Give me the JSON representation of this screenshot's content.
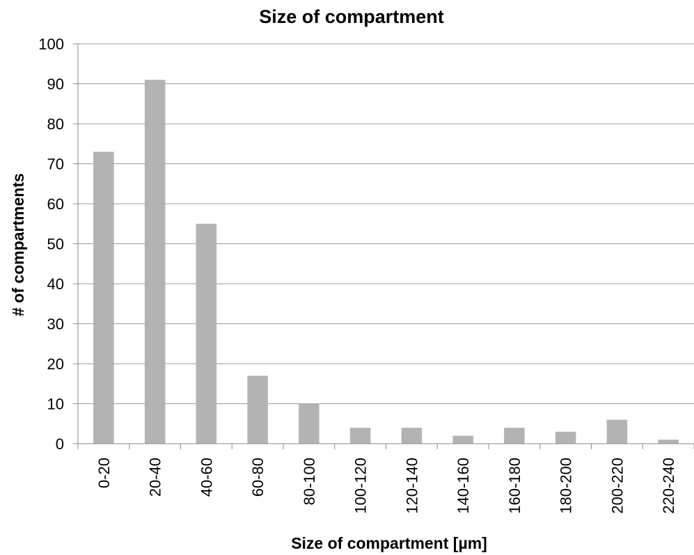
{
  "chart_data": {
    "type": "bar",
    "title": "Size of compartment",
    "xlabel": "Size of compartment [µm]",
    "ylabel": "# of compartments",
    "categories": [
      "0-20",
      "20-40",
      "40-60",
      "60-80",
      "80-100",
      "100-120",
      "120-140",
      "140-160",
      "160-180",
      "180-200",
      "200-220",
      "220-240"
    ],
    "values": [
      73,
      91,
      55,
      17,
      10,
      4,
      4,
      2,
      4,
      3,
      6,
      1
    ],
    "ylim": [
      0,
      100
    ],
    "yticks": [
      0,
      10,
      20,
      30,
      40,
      50,
      60,
      70,
      80,
      90,
      100
    ],
    "grid": true,
    "legend": "none",
    "colors": {
      "bar": "#b3b3b3",
      "grid": "#9a9a9a",
      "axis": "#8c8c8c",
      "text": "#000000"
    }
  }
}
